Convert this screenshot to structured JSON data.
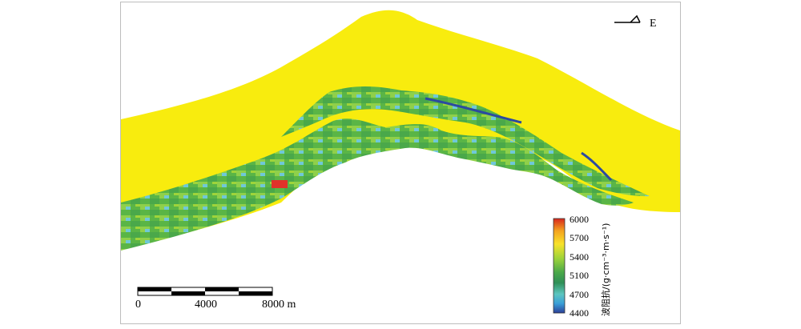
{
  "north_arrow": {
    "label": "E",
    "icon": "direction-arrow-icon"
  },
  "scale_bar": {
    "ticks": [
      "0",
      "4000",
      "8000 m"
    ],
    "icon": "scale-bar-icon"
  },
  "colorbar": {
    "title": "波阻抗/(g·cm⁻³·m·s⁻¹)",
    "tick_labels": [
      "6000",
      "5700",
      "5400",
      "5100",
      "4700",
      "4400"
    ],
    "colors": [
      "#d7261e",
      "#f4a31f",
      "#f8e22a",
      "#9fd43a",
      "#4aa84a",
      "#2f8f57",
      "#5dc6c0",
      "#3a9fd8",
      "#2b3f98"
    ]
  },
  "colors": {
    "matrix_fill": "#f8ec0e",
    "layer_green": "#5ab546",
    "layer_light_green": "#8fd04a",
    "layer_cyan": "#6fc8d8",
    "layer_blue": "#2c4aa0",
    "layer_red": "#e0322a"
  }
}
